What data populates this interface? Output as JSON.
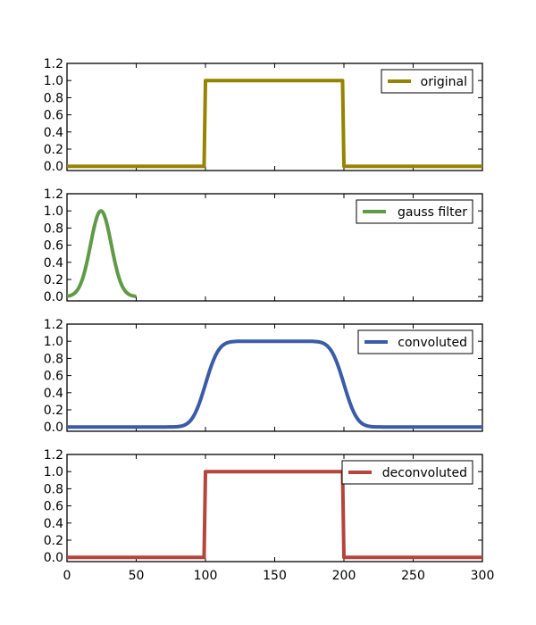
{
  "chart_data": [
    {
      "type": "line",
      "series": [
        {
          "name": "original",
          "color": "#958400",
          "shape": "rect",
          "params": {
            "start": 100,
            "end": 200
          }
        }
      ],
      "x_range": [
        0,
        300
      ],
      "ylim": [
        -0.05,
        1.2
      ],
      "yticks": [
        0.0,
        0.2,
        0.4,
        0.6,
        0.8,
        1.0,
        1.2
      ],
      "ytick_labels": [
        "0.0",
        "0.2",
        "0.4",
        "0.6",
        "0.8",
        "1.0",
        "1.2"
      ],
      "legend": {
        "label": "original",
        "position": "upper right"
      }
    },
    {
      "type": "line",
      "series": [
        {
          "name": "gauss filter",
          "color": "#5f9a47",
          "shape": "gauss",
          "params": {
            "x_end": 50,
            "mean": 24.5,
            "sigma": 7.5
          }
        }
      ],
      "x_range": [
        0,
        300
      ],
      "ylim": [
        -0.05,
        1.2
      ],
      "yticks": [
        0.0,
        0.2,
        0.4,
        0.6,
        0.8,
        1.0,
        1.2
      ],
      "ytick_labels": [
        "0.0",
        "0.2",
        "0.4",
        "0.6",
        "0.8",
        "1.0",
        "1.2"
      ],
      "legend": {
        "label": "gauss filter",
        "position": "upper right"
      }
    },
    {
      "type": "line",
      "series": [
        {
          "name": "convoluted",
          "color": "#3a5ca8",
          "shape": "smooth_rect",
          "params": {
            "start": 100,
            "end": 200,
            "sigma": 7.5,
            "offset": -24.5
          }
        }
      ],
      "x_range": [
        0,
        300
      ],
      "ylim": [
        -0.05,
        1.2
      ],
      "yticks": [
        0.0,
        0.2,
        0.4,
        0.6,
        0.8,
        1.0,
        1.2
      ],
      "ytick_labels": [
        "0.0",
        "0.2",
        "0.4",
        "0.6",
        "0.8",
        "1.0",
        "1.2"
      ],
      "legend": {
        "label": "convoluted",
        "position": "upper right"
      }
    },
    {
      "type": "line",
      "series": [
        {
          "name": "deconvoluted",
          "color": "#b5443a",
          "shape": "rect",
          "params": {
            "start": 100,
            "end": 200
          }
        }
      ],
      "x_range": [
        0,
        300
      ],
      "ylim": [
        -0.05,
        1.2
      ],
      "yticks": [
        0.0,
        0.2,
        0.4,
        0.6,
        0.8,
        1.0,
        1.2
      ],
      "ytick_labels": [
        "0.0",
        "0.2",
        "0.4",
        "0.6",
        "0.8",
        "1.0",
        "1.2"
      ],
      "xticks": [
        0,
        50,
        100,
        150,
        200,
        250,
        300
      ],
      "xtick_labels": [
        "0",
        "50",
        "100",
        "150",
        "200",
        "250",
        "300"
      ],
      "legend": {
        "label": "deconvoluted",
        "position": "upper right"
      }
    }
  ]
}
